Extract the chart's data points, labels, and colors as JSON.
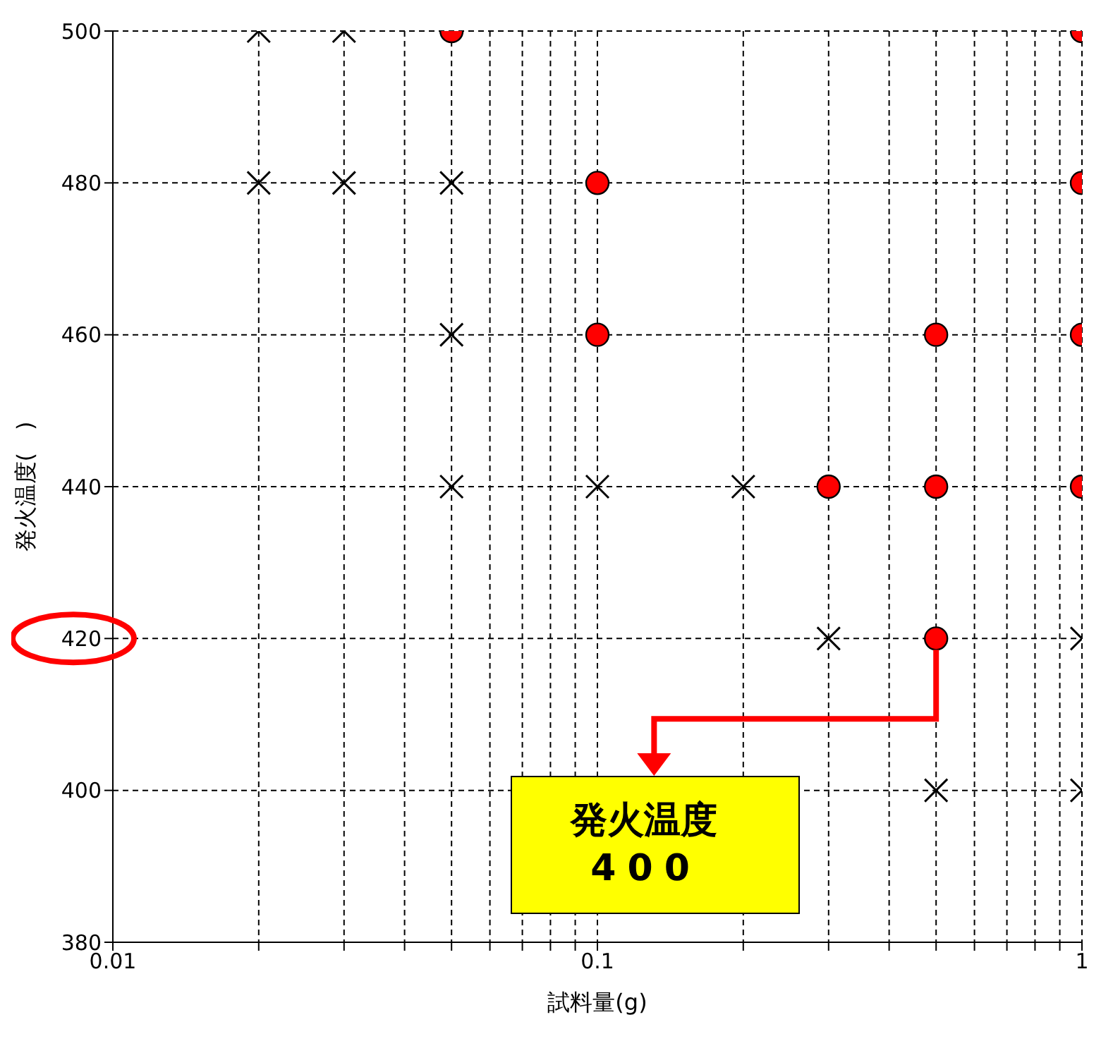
{
  "chart_data": {
    "type": "scatter",
    "xlabel": "試料量(g)",
    "ylabel": "発火温度(　)",
    "xlim": [
      0.01,
      1
    ],
    "ylim": [
      380,
      500
    ],
    "log": "x",
    "grid": true,
    "xticks": [
      0.01,
      {
        "value": 0.02,
        "label": null
      },
      {
        "value": 0.03,
        "label": null
      },
      {
        "value": 0.04,
        "label": null
      },
      {
        "value": 0.05,
        "label": null
      },
      {
        "value": 0.06,
        "label": null
      },
      {
        "value": 0.07,
        "label": null
      },
      {
        "value": 0.08,
        "label": null
      },
      {
        "value": 0.09,
        "label": null
      },
      0.1,
      {
        "value": 0.2,
        "label": null
      },
      {
        "value": 0.3,
        "label": null
      },
      {
        "value": 0.4,
        "label": null
      },
      {
        "value": 0.5,
        "label": null
      },
      {
        "value": 0.6,
        "label": null
      },
      {
        "value": 0.7,
        "label": null
      },
      {
        "value": 0.8,
        "label": null
      },
      {
        "value": 0.9,
        "label": null
      },
      1
    ],
    "yticks": [
      380,
      400,
      420,
      440,
      460,
      480,
      500
    ],
    "series": [
      {
        "color": "#000000",
        "marker": "cross",
        "x": [
          0.02,
          0.03,
          0.02,
          0.03,
          0.05,
          0.05,
          0.05,
          0.1,
          0.2,
          0.3,
          1,
          0.5,
          1
        ],
        "values": [
          500,
          500,
          480,
          480,
          480,
          460,
          440,
          440,
          440,
          420,
          420,
          400,
          400
        ]
      },
      {
        "color": "#ff0000",
        "marker": "circle",
        "x": [
          0.05,
          1,
          0.1,
          1,
          0.1,
          0.5,
          1,
          0.3,
          0.5,
          1,
          0.5
        ],
        "values": [
          500,
          500,
          480,
          480,
          460,
          460,
          460,
          440,
          440,
          440,
          420
        ]
      }
    ],
    "annotations": [
      {
        "text": "発火温度\n400",
        "x": 0.5,
        "y": 420
      }
    ]
  }
}
